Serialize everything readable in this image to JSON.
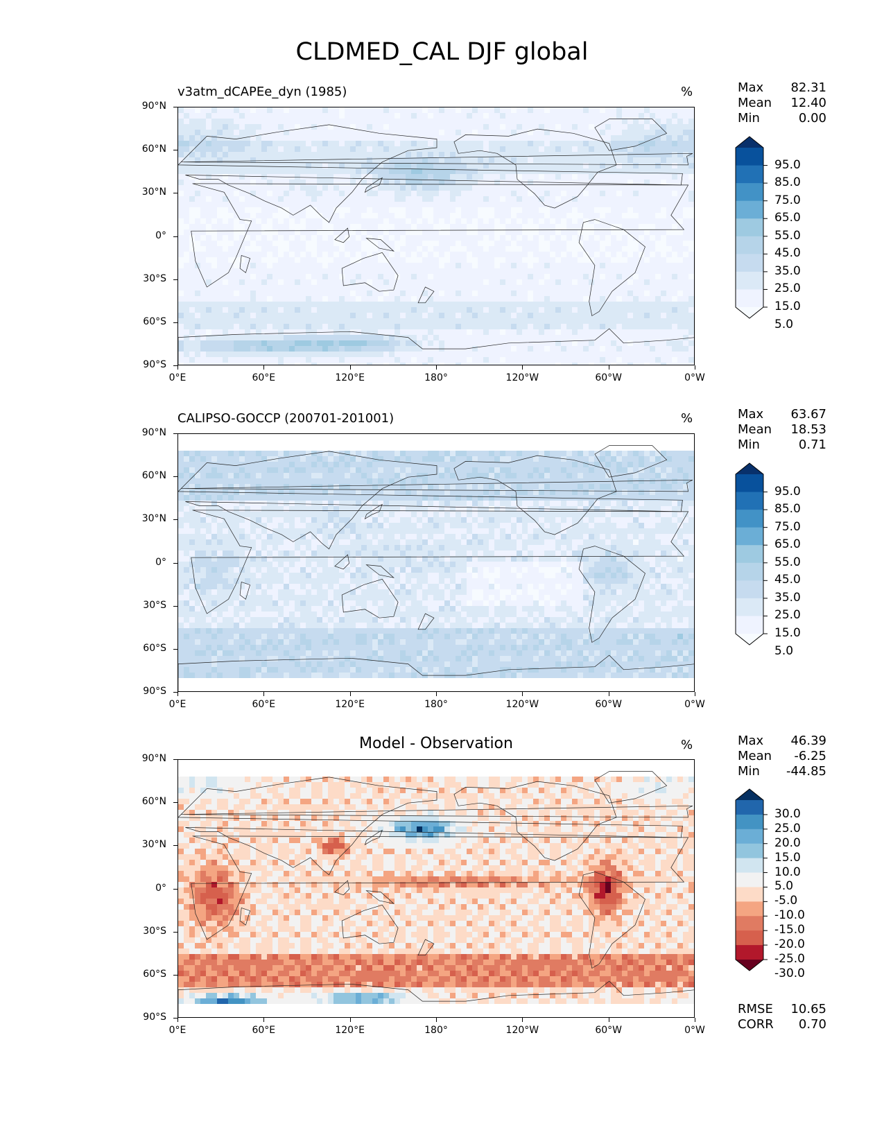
{
  "title": "CLDMED_CAL DJF global",
  "axes": {
    "yticks": [
      "90°N",
      "60°N",
      "30°N",
      "0°",
      "30°S",
      "60°S",
      "90°S"
    ],
    "xticks": [
      "0°E",
      "60°E",
      "120°E",
      "180°",
      "120°W",
      "60°W",
      "0°W"
    ]
  },
  "chart_data": [
    {
      "type": "heatmap",
      "title": "v3atm_dCAPEe_dyn (1985)",
      "units": "%",
      "stats": {
        "max_label": "Max",
        "max": "82.31",
        "mean_label": "Mean",
        "mean": "12.40",
        "min_label": "Min",
        "min": "0.00"
      },
      "colorbar": {
        "levels": [
          "95.0",
          "85.0",
          "75.0",
          "65.0",
          "55.0",
          "45.0",
          "35.0",
          "25.0",
          "15.0",
          "5.0"
        ],
        "colors": [
          "#08306b",
          "#08519c",
          "#2171b5",
          "#4292c6",
          "#6baed6",
          "#9ecae1",
          "#b6d4e9",
          "#c6dbef",
          "#dbe9f6",
          "#eff3ff",
          "#f7fbff"
        ]
      },
      "field": "model"
    },
    {
      "type": "heatmap",
      "title": "CALIPSO-GOCCP (200701-201001)",
      "units": "%",
      "stats": {
        "max_label": "Max",
        "max": "63.67",
        "mean_label": "Mean",
        "mean": "18.53",
        "min_label": "Min",
        "min": "0.71"
      },
      "colorbar": {
        "levels": [
          "95.0",
          "85.0",
          "75.0",
          "65.0",
          "55.0",
          "45.0",
          "35.0",
          "25.0",
          "15.0",
          "5.0"
        ],
        "colors": [
          "#08306b",
          "#08519c",
          "#2171b5",
          "#4292c6",
          "#6baed6",
          "#9ecae1",
          "#b6d4e9",
          "#c6dbef",
          "#dbe9f6",
          "#eff3ff",
          "#f7fbff"
        ]
      },
      "field": "obs"
    },
    {
      "type": "heatmap",
      "title": "Model - Observation",
      "units": "%",
      "stats": {
        "max_label": "Max",
        "max": "46.39",
        "mean_label": "Mean",
        "mean": "-6.25",
        "min_label": "Min",
        "min": "-44.85"
      },
      "extra_stats": {
        "rmse_label": "RMSE",
        "rmse": "10.65",
        "corr_label": "CORR",
        "corr": "0.70"
      },
      "colorbar": {
        "levels": [
          "30.0",
          "25.0",
          "20.0",
          "15.0",
          "10.0",
          "5.0",
          "-5.0",
          "-10.0",
          "-15.0",
          "-20.0",
          "-25.0",
          "-30.0"
        ],
        "colors": [
          "#053061",
          "#2166ac",
          "#4393c3",
          "#6baed6",
          "#92c5de",
          "#d1e5f0",
          "#f2f2f2",
          "#fddbc7",
          "#f4a582",
          "#e07b62",
          "#d6604d",
          "#b2182b",
          "#67001f"
        ]
      },
      "field": "diff"
    }
  ]
}
